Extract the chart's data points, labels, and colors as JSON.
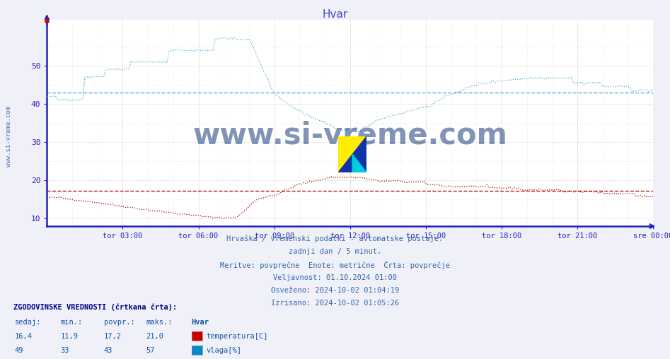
{
  "title": "Hvar",
  "title_color": "#4444cc",
  "bg_color": "#f0f0f8",
  "plot_bg_color": "#ffffff",
  "axis_color": "#2222bb",
  "xlabel_ticks": [
    "tor 03:00",
    "tor 06:00",
    "tor 09:00",
    "tor 12:00",
    "tor 15:00",
    "tor 18:00",
    "tor 21:00",
    "sre 00:00"
  ],
  "ylabel_ticks": [
    10,
    20,
    30,
    40,
    50
  ],
  "ylim": [
    8,
    62
  ],
  "xlim": [
    0,
    288
  ],
  "tick_positions_x": [
    36,
    72,
    108,
    144,
    180,
    216,
    252,
    288
  ],
  "temp_color": "#aa0000",
  "humidity_color": "#44aacc",
  "watermark_text": "www.si-vreme.com",
  "watermark_color": "#1a3a7a",
  "footer_lines": [
    "Hrvaška / vremenski podatki - avtomatske postaje.",
    "zadnji dan / 5 minut.",
    "Meritve: povprečne  Enote: metrične  Črta: povprečje",
    "Veljavnost: 01.10.2024 01:00",
    "Osveženo: 2024-10-02 01:04:19",
    "Izrisano: 2024-10-02 01:05:26"
  ],
  "legend_header": "ZGODOVINSKE VREDNOSTI (črtkana črta):",
  "legend_cols": [
    "sedaj:",
    "min.:",
    "povpr.:",
    "maks.:"
  ],
  "legend_data": [
    {
      "sedaj": "16,4",
      "min": "11,9",
      "povpr": "17,2",
      "maks": "21,0",
      "color": "#cc0000",
      "label": "temperatura[C]"
    },
    {
      "sedaj": "49",
      "min": "33",
      "povpr": "43",
      "maks": "57",
      "color": "#0088cc",
      "label": "vlaga[%]"
    }
  ],
  "temp_avg_value": 17.2,
  "humidity_avg_value": 43,
  "left_label": "www.si-vreme.com",
  "left_label_color": "#4477aa"
}
